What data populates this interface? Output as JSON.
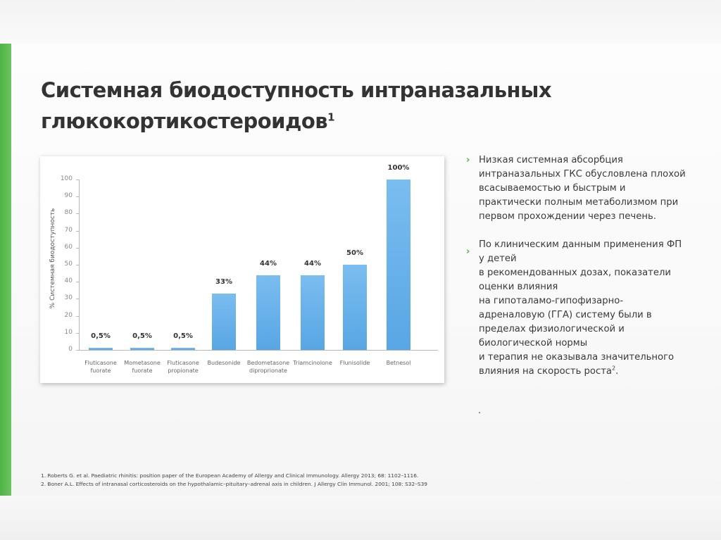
{
  "slide": {
    "title_line1": "Системная биодоступность интраназальных",
    "title_line2": "глюкокортикостероидов",
    "title_sup": "1",
    "accent_color": "#4db347",
    "bar_color": "#5ba8e6"
  },
  "chart_data": {
    "type": "bar",
    "title": "",
    "xlabel": "",
    "ylabel": "% Системная биодоступность",
    "ylim": [
      0,
      100
    ],
    "yticks": [
      0,
      10,
      20,
      30,
      40,
      50,
      60,
      70,
      80,
      90,
      100
    ],
    "grid": false,
    "legend": null,
    "categories": [
      "Fluticasone fuorate",
      "Mometasone fuorate",
      "Fluticasone propionate",
      "Budesonide",
      "Bedometasone diproprionate",
      "Triamcinolone",
      "Flunisolide",
      "Betnesol"
    ],
    "category_lines": [
      [
        "Fluticasone",
        "fuorate"
      ],
      [
        "Mometasone",
        "fuorate"
      ],
      [
        "Fluticasone",
        "propionate"
      ],
      [
        "Budesonide",
        ""
      ],
      [
        "Bedometasone",
        "diproprionate"
      ],
      [
        "Triamcinolone",
        ""
      ],
      [
        "Flunisolide",
        ""
      ],
      [
        "Betnesol",
        ""
      ]
    ],
    "values": [
      0.5,
      0.5,
      0.5,
      33,
      44,
      44,
      50,
      100
    ],
    "data_labels": [
      "0,5%",
      "0,5%",
      "0,5%",
      "33%",
      "44%",
      "44%",
      "50%",
      "100%"
    ]
  },
  "bullets": [
    {
      "lines": [
        "Низкая системная абсорбция",
        "интраназальных ГКС обусловлена плохой",
        "всасываемостью и быстрым и",
        "практически полным метаболизмом при",
        "первом прохождении через печень."
      ]
    },
    {
      "lines": [
        "По клиническим данным применения ФП",
        "у детей",
        "в рекомендованных дозах, показатели",
        "оценки влияния",
        "на гипоталамо-гипофизарно-",
        "адреналовую (ГГА) систему были  в",
        "пределах физиологической и",
        "биологической нормы",
        "и терапия не оказывала значительного",
        "влияния  на скорость роста"
      ],
      "sup": "2",
      "tail": "."
    }
  ],
  "stray_dot": ".",
  "references": [
    "1. Roberts G. et al. Paediatric rhinitis: position paper of the European Academy of Allergy and Clinical Immunology. Allergy 2013; 68:  1102–1116.",
    "2. Boner A.L. Effects of intranasal corticosteroids on the hypothalamic–pituitary–adrenal axis in children. J Allergy Clin Immunol. 2001; 108: S32–S39"
  ]
}
